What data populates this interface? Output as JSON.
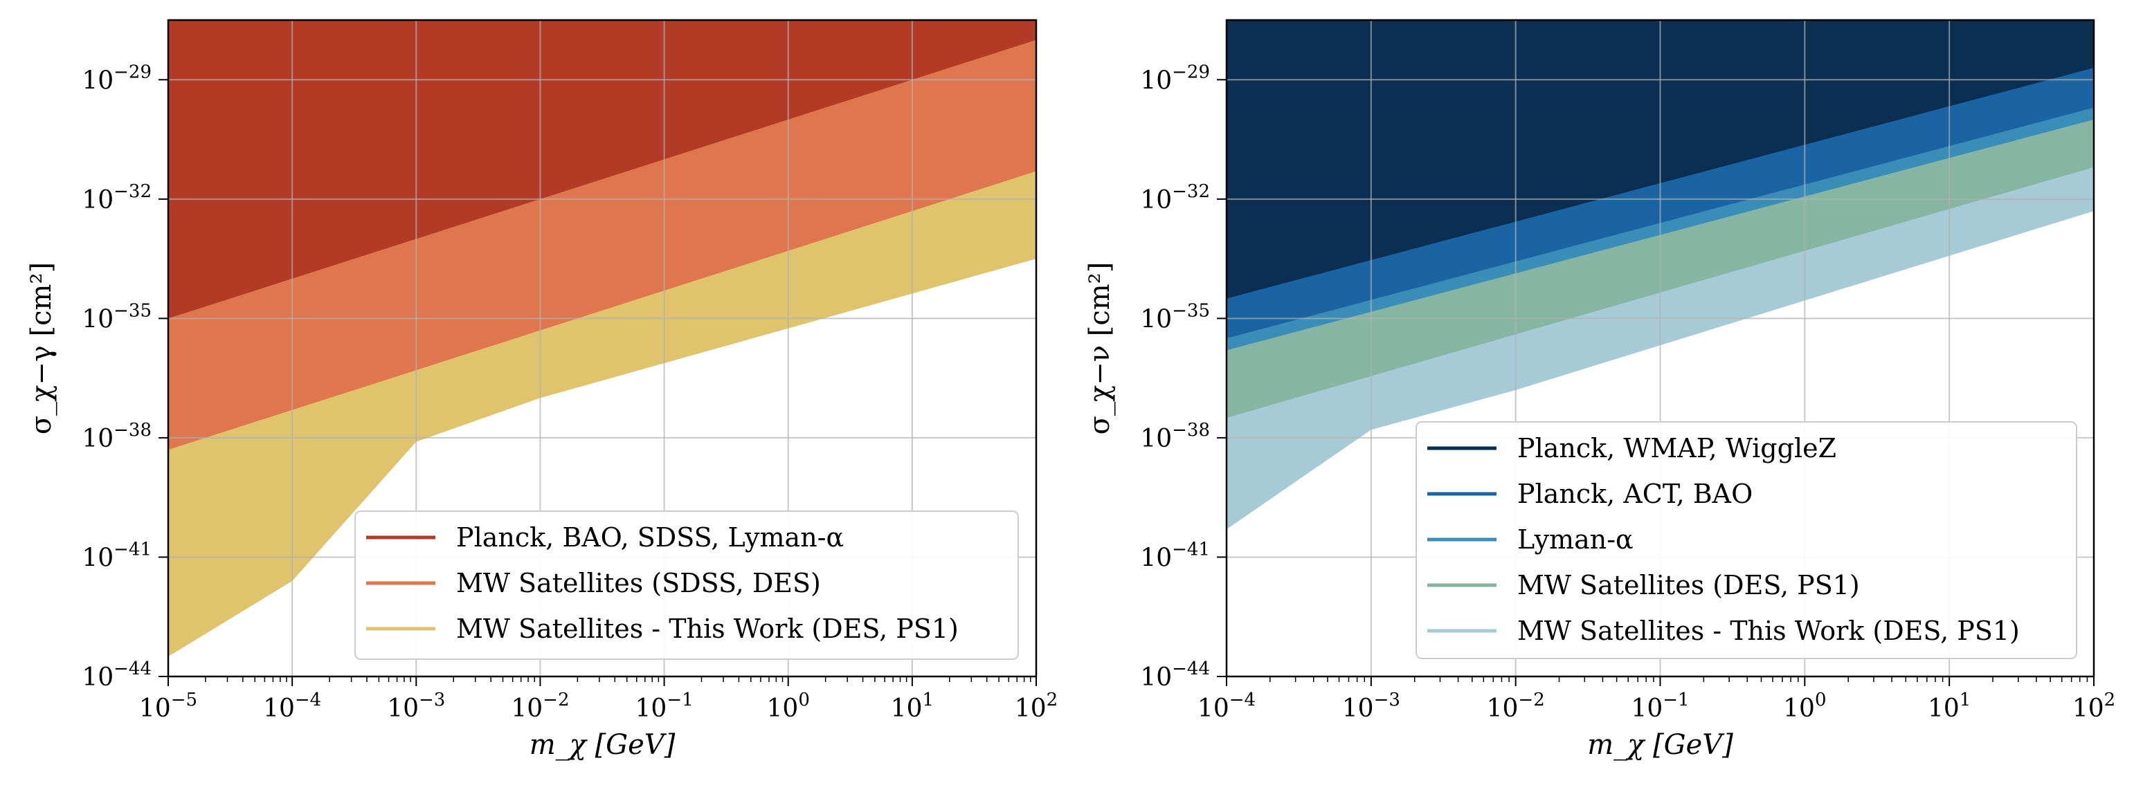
{
  "chart_data": [
    {
      "type": "area",
      "xscale": "log",
      "yscale": "log",
      "xlabel": "m_χ [GeV]",
      "ylabel": "σ_χ−γ [cm²]",
      "xlim_exp": [
        -5,
        2
      ],
      "ylim_exp": [
        -44,
        -27.5
      ],
      "xticks": [
        {
          "exp": -5,
          "base": "10",
          "sup": "−5"
        },
        {
          "exp": -4,
          "base": "10",
          "sup": "−4"
        },
        {
          "exp": -3,
          "base": "10",
          "sup": "−3"
        },
        {
          "exp": -2,
          "base": "10",
          "sup": "−2"
        },
        {
          "exp": -1,
          "base": "10",
          "sup": "−1"
        },
        {
          "exp": 0,
          "base": "10",
          "sup": "0"
        },
        {
          "exp": 1,
          "base": "10",
          "sup": "1"
        },
        {
          "exp": 2,
          "base": "10",
          "sup": "2"
        }
      ],
      "yticks": [
        {
          "exp": -44,
          "base": "10",
          "sup": "−44"
        },
        {
          "exp": -41,
          "base": "10",
          "sup": "−41"
        },
        {
          "exp": -38,
          "base": "10",
          "sup": "−38"
        },
        {
          "exp": -35,
          "base": "10",
          "sup": "−35"
        },
        {
          "exp": -32,
          "base": "10",
          "sup": "−32"
        },
        {
          "exp": -29,
          "base": "10",
          "sup": "−29"
        }
      ],
      "series": [
        {
          "name": "Planck, BAO, SDSS, Lyman-α",
          "color": "#b23b25",
          "boundary_log10": [
            [
              -5,
              -35.0
            ],
            [
              2,
              -28.0
            ]
          ]
        },
        {
          "name": "MW Satellites (SDSS, DES)",
          "color": "#e0764d",
          "boundary_log10": [
            [
              -5,
              -38.3
            ],
            [
              2,
              -31.3
            ]
          ]
        },
        {
          "name": "MW Satellites - This Work (DES, PS1)",
          "color": "#dfc46d",
          "boundary_log10": [
            [
              -5,
              -43.5
            ],
            [
              -4,
              -41.6
            ],
            [
              -3,
              -38.1
            ],
            [
              -2,
              -37.0
            ],
            [
              2,
              -33.5
            ]
          ]
        }
      ],
      "legend_location": "lower right"
    },
    {
      "type": "area",
      "xscale": "log",
      "yscale": "log",
      "xlabel": "m_χ [GeV]",
      "ylabel": "σ_χ−ν [cm²]",
      "xlim_exp": [
        -4,
        2
      ],
      "ylim_exp": [
        -44,
        -27.5
      ],
      "xticks": [
        {
          "exp": -4,
          "base": "10",
          "sup": "−4"
        },
        {
          "exp": -3,
          "base": "10",
          "sup": "−3"
        },
        {
          "exp": -2,
          "base": "10",
          "sup": "−2"
        },
        {
          "exp": -1,
          "base": "10",
          "sup": "−1"
        },
        {
          "exp": 0,
          "base": "10",
          "sup": "0"
        },
        {
          "exp": 1,
          "base": "10",
          "sup": "1"
        },
        {
          "exp": 2,
          "base": "10",
          "sup": "2"
        }
      ],
      "yticks": [
        {
          "exp": -44,
          "base": "10",
          "sup": "−44"
        },
        {
          "exp": -41,
          "base": "10",
          "sup": "−41"
        },
        {
          "exp": -38,
          "base": "10",
          "sup": "−38"
        },
        {
          "exp": -35,
          "base": "10",
          "sup": "−35"
        },
        {
          "exp": -32,
          "base": "10",
          "sup": "−32"
        },
        {
          "exp": -29,
          "base": "10",
          "sup": "−29"
        }
      ],
      "series": [
        {
          "name": "Planck, WMAP, WiggleZ",
          "color": "#0a2f52",
          "boundary_log10": [
            [
              -4,
              -34.5
            ],
            [
              2,
              -28.7
            ]
          ]
        },
        {
          "name": "Planck, ACT, BAO",
          "color": "#1a64a3",
          "boundary_log10": [
            [
              -4,
              -35.5
            ],
            [
              2,
              -29.7
            ]
          ]
        },
        {
          "name": "Lyman-α",
          "color": "#3a8db7",
          "boundary_log10": [
            [
              -4,
              -35.8
            ],
            [
              2,
              -30.0
            ]
          ]
        },
        {
          "name": "MW Satellites (DES, PS1)",
          "color": "#86b5a3",
          "boundary_log10": [
            [
              -4,
              -37.5
            ],
            [
              2,
              -31.2
            ]
          ]
        },
        {
          "name": "MW Satellites - This Work (DES, PS1)",
          "color": "#a7cbd6",
          "boundary_log10": [
            [
              -4,
              -40.3
            ],
            [
              -3,
              -37.8
            ],
            [
              -2,
              -36.8
            ],
            [
              2,
              -32.3
            ]
          ]
        }
      ],
      "legend_location": "lower right"
    }
  ]
}
